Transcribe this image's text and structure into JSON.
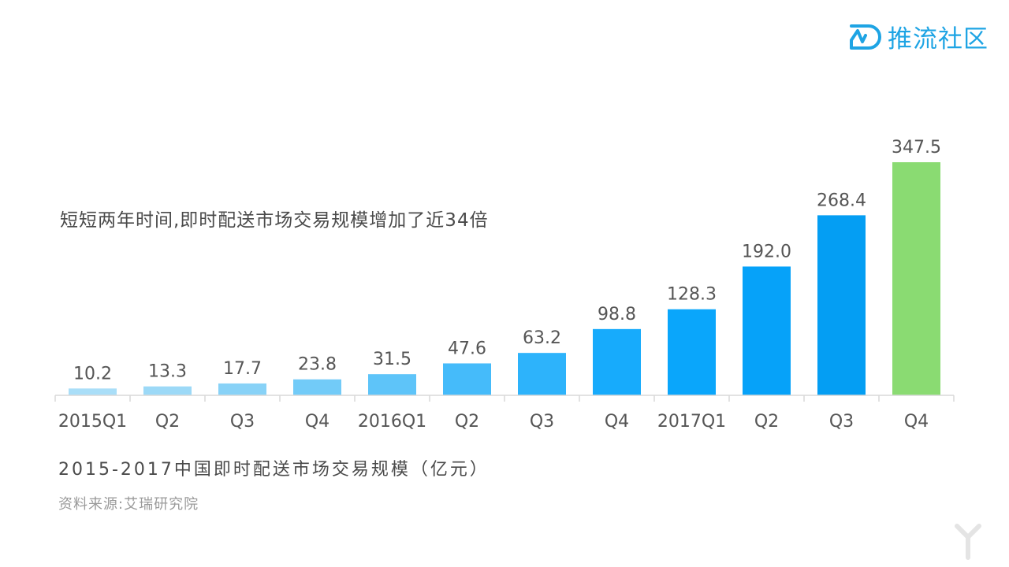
{
  "brand": {
    "logo_text": "推流社区",
    "logo_icon": "wave-d-icon",
    "color": "#1ea4e4"
  },
  "annotation": "短短两年时间,即时配送市场交易规模增加了近34倍",
  "chart_title": "2015-2017中国即时配送市场交易规模（亿元）",
  "source": "资料来源:艾瑞研究院",
  "watermark_icon": "yiou-watermark-icon",
  "chart_data": {
    "type": "bar",
    "categories": [
      "2015Q1",
      "Q2",
      "Q3",
      "Q4",
      "2016Q1",
      "Q2",
      "Q3",
      "Q4",
      "2017Q1",
      "Q2",
      "Q3",
      "Q4"
    ],
    "values": [
      10.2,
      13.3,
      17.7,
      23.8,
      31.5,
      47.6,
      63.2,
      98.8,
      128.3,
      192.0,
      268.4,
      347.5
    ],
    "value_labels": [
      "10.2",
      "13.3",
      "17.7",
      "23.8",
      "31.5",
      "47.6",
      "63.2",
      "98.8",
      "128.3",
      "192.0",
      "268.4",
      "347.5"
    ],
    "colors": [
      "#a9def8",
      "#9cd9f7",
      "#88d2f7",
      "#72cbf8",
      "#5ec4f9",
      "#45bbfa",
      "#2db3fb",
      "#17abfc",
      "#0aa6fb",
      "#06a2f9",
      "#049ef3",
      "#8adb72"
    ],
    "ylim": [
      0,
      347.5
    ],
    "grid": false,
    "legend": "none"
  }
}
